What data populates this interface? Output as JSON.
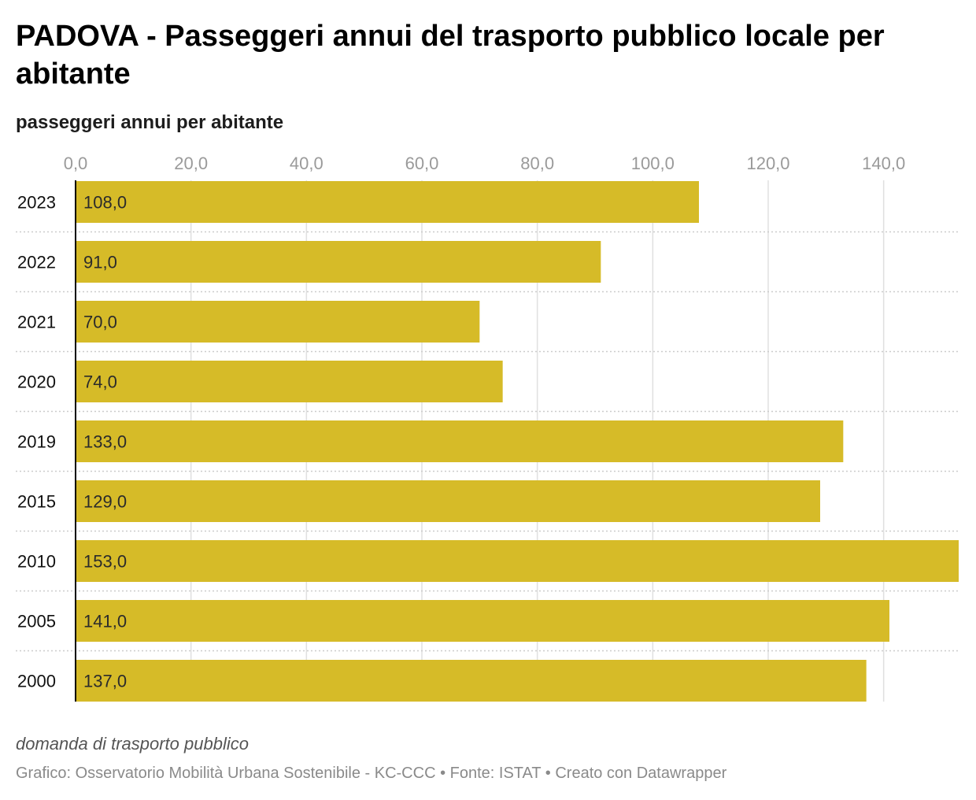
{
  "title": "PADOVA - Passeggeri annui del trasporto pubblico locale per abitante",
  "subtitle": "passeggeri annui per abitante",
  "notes": "domanda di trasporto pubblico",
  "byline": "Grafico: Osservatorio Mobilità Urbana Sostenibile - KC-CCC • Fonte: ISTAT • Creato con Datawrapper",
  "colors": {
    "bar": "#d6bb28",
    "grid": "#e0e0e0",
    "row_separator": "#cccccc",
    "baseline": "#000000"
  },
  "chart_data": {
    "type": "bar",
    "orientation": "horizontal",
    "categories": [
      "2023",
      "2022",
      "2021",
      "2020",
      "2019",
      "2015",
      "2010",
      "2005",
      "2000"
    ],
    "values": [
      108.0,
      91.0,
      70.0,
      74.0,
      133.0,
      129.0,
      153.0,
      141.0,
      137.0
    ],
    "value_labels": [
      "108,0",
      "91,0",
      "70,0",
      "74,0",
      "133,0",
      "129,0",
      "153,0",
      "141,0",
      "137,0"
    ],
    "xlim": [
      0,
      153
    ],
    "xticks": [
      0,
      20,
      40,
      60,
      80,
      100,
      120,
      140
    ],
    "xtick_labels": [
      "0,0",
      "20,0",
      "40,0",
      "60,0",
      "80,0",
      "100,0",
      "120,0",
      "140,0"
    ],
    "xaxis_position": "top",
    "grid": true
  }
}
